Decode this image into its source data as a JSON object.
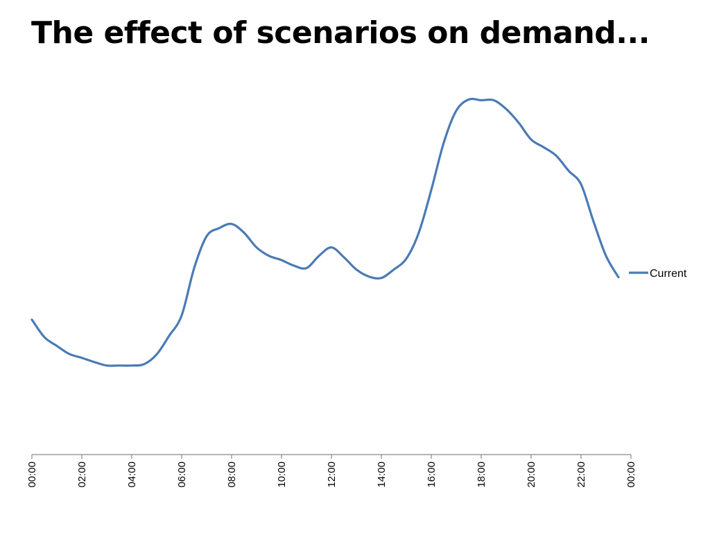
{
  "slide": {
    "title": "The effect of scenarios on demand..."
  },
  "chart_data": {
    "type": "line",
    "title": "",
    "xlabel": "",
    "ylabel": "",
    "grid": false,
    "legend_position": "right",
    "x_ticks": [
      "00:00",
      "02:00",
      "04:00",
      "06:00",
      "08:00",
      "10:00",
      "12:00",
      "14:00",
      "16:00",
      "18:00",
      "20:00",
      "22:00",
      "00:00"
    ],
    "x_range_hours": [
      0,
      24
    ],
    "ylim": [
      0,
      100
    ],
    "series": [
      {
        "name": "Current",
        "color": "#4a7ab5",
        "points": [
          [
            0.0,
            38.5
          ],
          [
            0.5,
            33.5
          ],
          [
            1.0,
            31.0
          ],
          [
            1.5,
            28.7
          ],
          [
            2.0,
            27.6
          ],
          [
            2.5,
            26.4
          ],
          [
            3.0,
            25.4
          ],
          [
            3.5,
            25.4
          ],
          [
            4.0,
            25.4
          ],
          [
            4.5,
            25.8
          ],
          [
            5.0,
            28.6
          ],
          [
            5.5,
            33.9
          ],
          [
            6.0,
            39.7
          ],
          [
            6.5,
            53.2
          ],
          [
            7.0,
            62.3
          ],
          [
            7.5,
            64.6
          ],
          [
            8.0,
            65.8
          ],
          [
            8.5,
            63.3
          ],
          [
            9.0,
            59.1
          ],
          [
            9.5,
            56.7
          ],
          [
            10.0,
            55.5
          ],
          [
            10.5,
            53.9
          ],
          [
            11.0,
            53.2
          ],
          [
            11.5,
            56.7
          ],
          [
            12.0,
            59.1
          ],
          [
            12.5,
            56.3
          ],
          [
            13.0,
            52.8
          ],
          [
            13.5,
            50.8
          ],
          [
            14.0,
            50.4
          ],
          [
            14.5,
            52.8
          ],
          [
            15.0,
            55.9
          ],
          [
            15.5,
            63.3
          ],
          [
            16.0,
            75.5
          ],
          [
            16.5,
            89.0
          ],
          [
            17.0,
            98.1
          ],
          [
            17.5,
            101.3
          ],
          [
            18.0,
            101.1
          ],
          [
            18.5,
            101.1
          ],
          [
            19.0,
            98.6
          ],
          [
            19.5,
            94.7
          ],
          [
            20.0,
            89.9
          ],
          [
            20.5,
            87.7
          ],
          [
            21.0,
            85.3
          ],
          [
            21.5,
            81.0
          ],
          [
            22.0,
            77.1
          ],
          [
            22.5,
            66.5
          ],
          [
            23.0,
            56.7
          ],
          [
            23.5,
            50.6
          ]
        ]
      }
    ]
  }
}
